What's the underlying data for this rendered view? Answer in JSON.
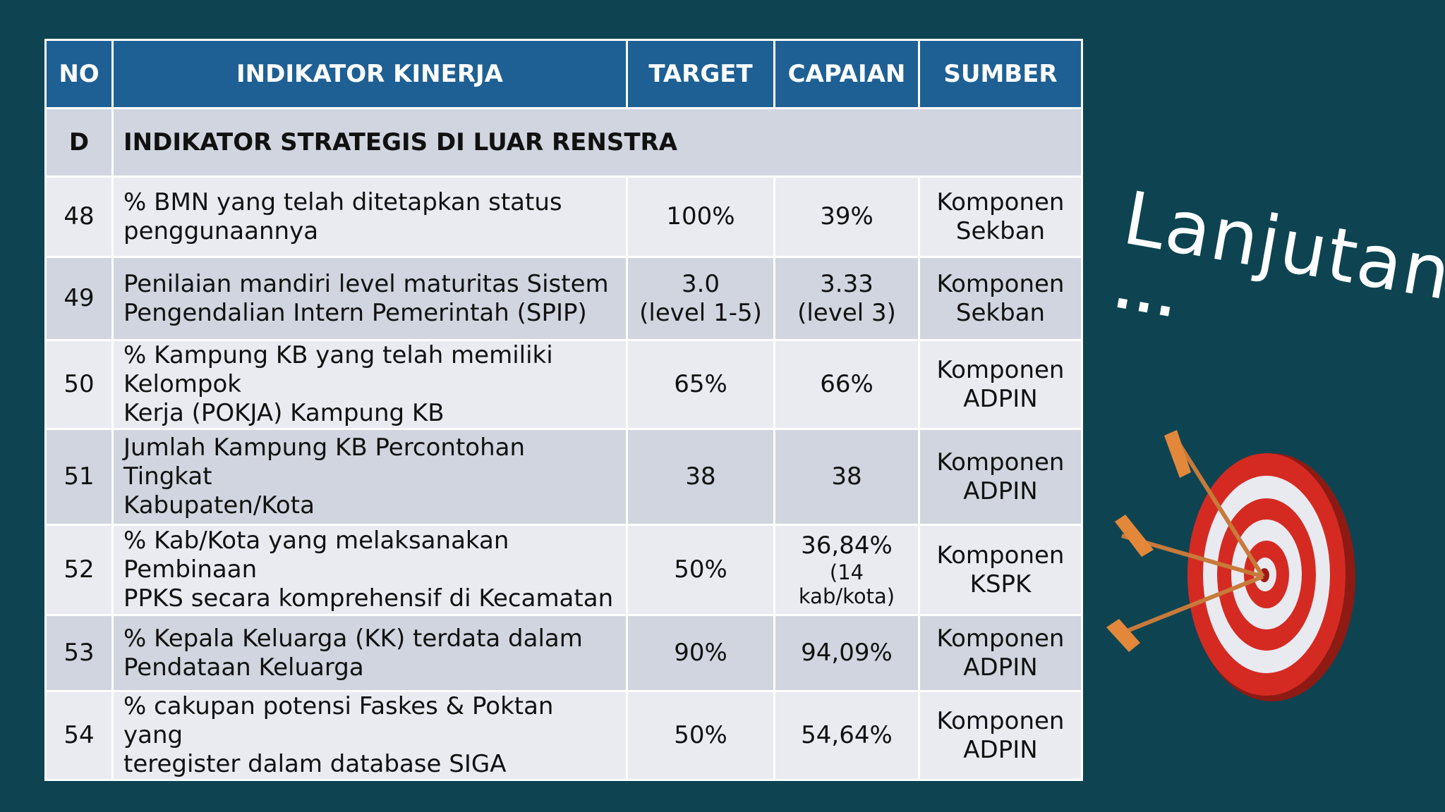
{
  "header": {
    "no": "NO",
    "indikator": "INDIKATOR KINERJA",
    "target": "TARGET",
    "capaian": "CAPAIAN",
    "sumber": "SUMBER"
  },
  "section": {
    "no": "D",
    "title": "INDIKATOR STRATEGIS DI LUAR RENSTRA"
  },
  "rows": [
    {
      "no": "48",
      "indikator": [
        "% BMN yang telah ditetapkan status",
        "penggunaannya"
      ],
      "target": [
        "100%"
      ],
      "capaian": [
        "39%"
      ],
      "sumber": [
        "Komponen",
        "Sekban"
      ]
    },
    {
      "no": "49",
      "indikator": [
        "Penilaian mandiri level maturitas Sistem",
        "Pengendalian Intern Pemerintah (SPIP)"
      ],
      "target": [
        "3.0",
        "(level 1-5)"
      ],
      "capaian": [
        "3.33",
        "(level 3)"
      ],
      "sumber": [
        "Komponen",
        "Sekban"
      ]
    },
    {
      "no": "50",
      "indikator": [
        "% Kampung KB yang telah memiliki Kelompok",
        "Kerja (POKJA) Kampung KB"
      ],
      "target": [
        "65%"
      ],
      "capaian": [
        "66%"
      ],
      "sumber": [
        "Komponen",
        "ADPIN"
      ]
    },
    {
      "no": "51",
      "indikator": [
        "Jumlah Kampung KB Percontohan Tingkat",
        "Kabupaten/Kota"
      ],
      "target": [
        "38"
      ],
      "capaian": [
        "38"
      ],
      "sumber": [
        "Komponen",
        "ADPIN"
      ]
    },
    {
      "no": "52",
      "indikator": [
        "% Kab/Kota yang melaksanakan Pembinaan",
        "PPKS secara komprehensif di Kecamatan"
      ],
      "target": [
        "50%"
      ],
      "capaian": [
        "36,84%",
        "(14",
        "kab/kota)"
      ],
      "sumber": [
        "Komponen",
        "KSPK"
      ]
    },
    {
      "no": "53",
      "indikator": [
        "% Kepala Keluarga (KK) terdata dalam",
        "Pendataan Keluarga"
      ],
      "target": [
        "90%"
      ],
      "capaian": [
        "94,09%"
      ],
      "sumber": [
        "Komponen",
        "ADPIN"
      ]
    },
    {
      "no": "54",
      "indikator": [
        "% cakupan potensi Faskes & Poktan yang",
        "teregister dalam database SIGA"
      ],
      "target": [
        "50%"
      ],
      "capaian": [
        "54,64%"
      ],
      "sumber": [
        "Komponen",
        "ADPIN"
      ]
    }
  ],
  "side_title": "Lanjutan",
  "side_ellipsis": "...",
  "colors": {
    "background": "#0e4452",
    "header": "#1e6094",
    "row_dark": "#d0d5df",
    "row_light": "#e9ebf1",
    "target_red": "#d52a22"
  },
  "illustration": "target-with-arrows-icon"
}
